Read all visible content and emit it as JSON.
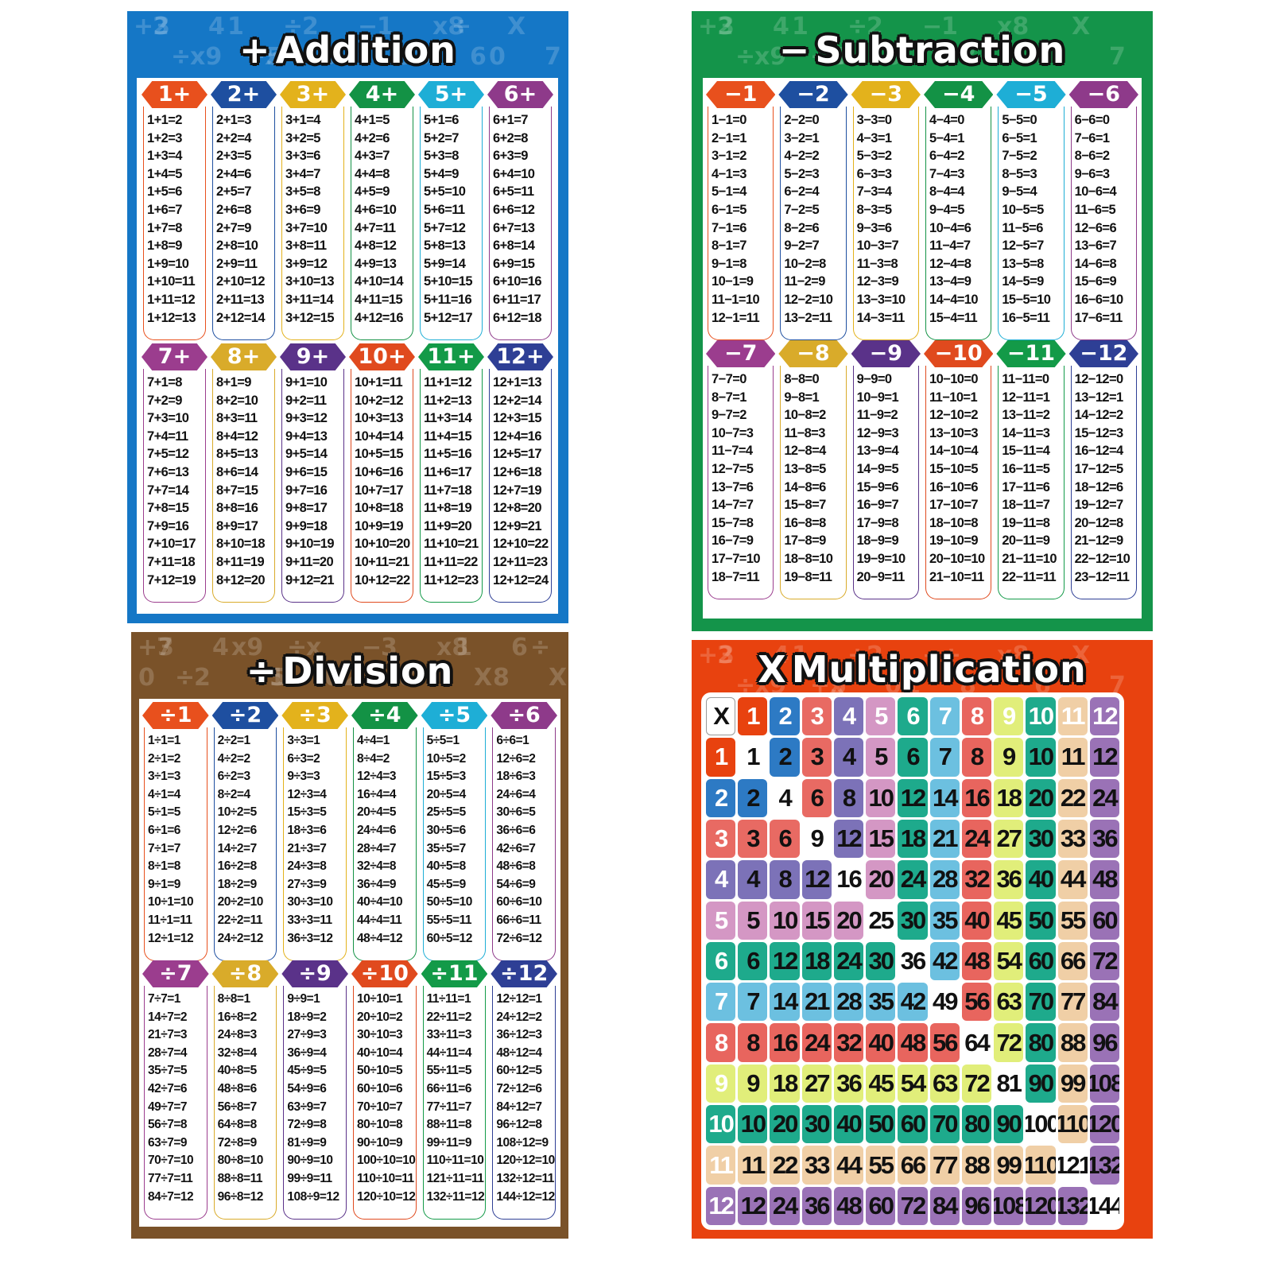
{
  "posters": {
    "addition": {
      "title_symbol": "+",
      "title": "Addition",
      "background": "#1577c6",
      "watermark": [
        "+3",
        "÷",
        "4",
        "+5",
        "÷",
        "0",
        "−",
        "8",
        "x8",
        "6",
        "X",
        "7",
        "2",
        "x9",
        "1",
        "x",
        "2",
        "−",
        "1",
        "8",
        "÷",
        "0"
      ],
      "columns": [
        {
          "label": "1+",
          "color": "#e8501d",
          "equations": [
            "1+1=2",
            "1+2=3",
            "1+3=4",
            "1+4=5",
            "1+5=6",
            "1+6=7",
            "1+7=8",
            "1+8=9",
            "1+9=10",
            "1+10=11",
            "1+11=12",
            "1+12=13"
          ]
        },
        {
          "label": "2+",
          "color": "#1e4fa0",
          "equations": [
            "2+1=3",
            "2+2=4",
            "2+3=5",
            "2+4=6",
            "2+5=7",
            "2+6=8",
            "2+7=9",
            "2+8=10",
            "2+9=11",
            "2+10=12",
            "2+11=13",
            "2+12=14"
          ]
        },
        {
          "label": "3+",
          "color": "#e3b21c",
          "equations": [
            "3+1=4",
            "3+2=5",
            "3+3=6",
            "3+4=7",
            "3+5=8",
            "3+6=9",
            "3+7=10",
            "3+8=11",
            "3+9=12",
            "3+10=13",
            "3+11=14",
            "3+12=15"
          ]
        },
        {
          "label": "4+",
          "color": "#139245",
          "equations": [
            "4+1=5",
            "4+2=6",
            "4+3=7",
            "4+4=8",
            "4+5=9",
            "4+6=10",
            "4+7=11",
            "4+8=12",
            "4+9=13",
            "4+10=14",
            "4+11=15",
            "4+12=16"
          ]
        },
        {
          "label": "5+",
          "color": "#1eaed6",
          "equations": [
            "5+1=6",
            "5+2=7",
            "5+3=8",
            "5+4=9",
            "5+5=10",
            "5+6=11",
            "5+7=12",
            "5+8=13",
            "5+9=14",
            "5+10=15",
            "5+11=16",
            "5+12=17"
          ]
        },
        {
          "label": "6+",
          "color": "#8e3a8a",
          "equations": [
            "6+1=7",
            "6+2=8",
            "6+3=9",
            "6+4=10",
            "6+5=11",
            "6+6=12",
            "6+7=13",
            "6+8=14",
            "6+9=15",
            "6+10=16",
            "6+11=17",
            "6+12=18"
          ]
        },
        {
          "label": "7+",
          "color": "#9b3d8e",
          "equations": [
            "7+1=8",
            "7+2=9",
            "7+3=10",
            "7+4=11",
            "7+5=12",
            "7+6=13",
            "7+7=14",
            "7+8=15",
            "7+9=16",
            "7+10=17",
            "7+11=18",
            "7+12=19"
          ]
        },
        {
          "label": "8+",
          "color": "#d9ab2a",
          "equations": [
            "8+1=9",
            "8+2=10",
            "8+3=11",
            "8+4=12",
            "8+5=13",
            "8+6=14",
            "8+7=15",
            "8+8=16",
            "8+9=17",
            "8+10=18",
            "8+11=19",
            "8+12=20"
          ]
        },
        {
          "label": "9+",
          "color": "#5a3289",
          "equations": [
            "9+1=10",
            "9+2=11",
            "9+3=12",
            "9+4=13",
            "9+5=14",
            "9+6=15",
            "9+7=16",
            "9+8=17",
            "9+9=18",
            "9+10=19",
            "9+11=20",
            "9+12=21"
          ]
        },
        {
          "label": "10+",
          "color": "#e04a1e",
          "equations": [
            "10+1=11",
            "10+2=12",
            "10+3=13",
            "10+4=14",
            "10+5=15",
            "10+6=16",
            "10+7=17",
            "10+8=18",
            "10+9=19",
            "10+10=20",
            "10+11=21",
            "10+12=22"
          ]
        },
        {
          "label": "11+",
          "color": "#139a48",
          "equations": [
            "11+1=12",
            "11+2=13",
            "11+3=14",
            "11+4=15",
            "11+5=16",
            "11+6=17",
            "11+7=18",
            "11+8=19",
            "11+9=20",
            "11+10=21",
            "11+11=22",
            "11+12=23"
          ]
        },
        {
          "label": "12+",
          "color": "#2e3f95",
          "equations": [
            "12+1=13",
            "12+2=14",
            "12+3=15",
            "12+4=16",
            "12+5=17",
            "12+6=18",
            "12+7=19",
            "12+8=20",
            "12+9=21",
            "12+10=22",
            "12+11=23",
            "12+12=24"
          ]
        }
      ]
    },
    "subtraction": {
      "title_symbol": "−",
      "title": "Subtraction",
      "background": "#14944a",
      "watermark": [
        "+3",
        "÷",
        "4",
        "+5",
        "÷",
        "0",
        "−",
        "8",
        "x8",
        "6",
        "X",
        "7",
        "2",
        "x9",
        "1",
        "x",
        "2",
        "−",
        "1",
        "÷"
      ],
      "columns": [
        {
          "label": "−1",
          "color": "#e8501d",
          "equations": [
            "1−1=0",
            "2−1=1",
            "3−1=2",
            "4−1=3",
            "5−1=4",
            "6−1=5",
            "7−1=6",
            "8−1=7",
            "9−1=8",
            "10−1=9",
            "11−1=10",
            "12−1=11"
          ]
        },
        {
          "label": "−2",
          "color": "#1e4fa0",
          "equations": [
            "2−2=0",
            "3−2=1",
            "4−2=2",
            "5−2=3",
            "6−2=4",
            "7−2=5",
            "8−2=6",
            "9−2=7",
            "10−2=8",
            "11−2=9",
            "12−2=10",
            "13−2=11"
          ]
        },
        {
          "label": "−3",
          "color": "#e3b21c",
          "equations": [
            "3−3=0",
            "4−3=1",
            "5−3=2",
            "6−3=3",
            "7−3=4",
            "8−3=5",
            "9−3=6",
            "10−3=7",
            "11−3=8",
            "12−3=9",
            "13−3=10",
            "14−3=11"
          ]
        },
        {
          "label": "−4",
          "color": "#139245",
          "equations": [
            "4−4=0",
            "5−4=1",
            "6−4=2",
            "7−4=3",
            "8−4=4",
            "9−4=5",
            "10−4=6",
            "11−4=7",
            "12−4=8",
            "13−4=9",
            "14−4=10",
            "15−4=11"
          ]
        },
        {
          "label": "−5",
          "color": "#1eaed6",
          "equations": [
            "5−5=0",
            "6−5=1",
            "7−5=2",
            "8−5=3",
            "9−5=4",
            "10−5=5",
            "11−5=6",
            "12−5=7",
            "13−5=8",
            "14−5=9",
            "15−5=10",
            "16−5=11"
          ]
        },
        {
          "label": "−6",
          "color": "#8e3a8a",
          "equations": [
            "6−6=0",
            "7−6=1",
            "8−6=2",
            "9−6=3",
            "10−6=4",
            "11−6=5",
            "12−6=6",
            "13−6=7",
            "14−6=8",
            "15−6=9",
            "16−6=10",
            "17−6=11"
          ]
        },
        {
          "label": "−7",
          "color": "#9b3d8e",
          "equations": [
            "7−7=0",
            "8−7=1",
            "9−7=2",
            "10−7=3",
            "11−7=4",
            "12−7=5",
            "13−7=6",
            "14−7=7",
            "15−7=8",
            "16−7=9",
            "17−7=10",
            "18−7=11"
          ]
        },
        {
          "label": "−8",
          "color": "#d9ab2a",
          "equations": [
            "8−8=0",
            "9−8=1",
            "10−8=2",
            "11−8=3",
            "12−8=4",
            "13−8=5",
            "14−8=6",
            "15−8=7",
            "16−8=8",
            "17−8=9",
            "18−8=10",
            "19−8=11"
          ]
        },
        {
          "label": "−9",
          "color": "#5a3289",
          "equations": [
            "9−9=0",
            "10−9=1",
            "11−9=2",
            "12−9=3",
            "13−9=4",
            "14−9=5",
            "15−9=6",
            "16−9=7",
            "17−9=8",
            "18−9=9",
            "19−9=10",
            "20−9=11"
          ]
        },
        {
          "label": "−10",
          "color": "#e04a1e",
          "equations": [
            "10−10=0",
            "11−10=1",
            "12−10=2",
            "13−10=3",
            "14−10=4",
            "15−10=5",
            "16−10=6",
            "17−10=7",
            "18−10=8",
            "19−10=9",
            "20−10=10",
            "21−10=11"
          ]
        },
        {
          "label": "−11",
          "color": "#139a48",
          "equations": [
            "11−11=0",
            "12−11=1",
            "13−11=2",
            "14−11=3",
            "15−11=4",
            "16−11=5",
            "17−11=6",
            "18−11=7",
            "19−11=8",
            "20−11=9",
            "21−11=10",
            "22−11=11"
          ]
        },
        {
          "label": "−12",
          "color": "#2e3f95",
          "equations": [
            "12−12=0",
            "13−12=1",
            "14−12=2",
            "15−12=3",
            "16−12=4",
            "17−12=5",
            "18−12=6",
            "19−12=7",
            "20−12=8",
            "21−12=9",
            "22−12=10",
            "23−12=11"
          ]
        }
      ]
    },
    "division": {
      "title_symbol": "÷",
      "title": "Division",
      "background": "#7a5229",
      "watermark": [
        "+3",
        "÷",
        "4",
        "+5",
        "÷",
        "0",
        "−",
        "8",
        "x8",
        "X",
        "6",
        "X",
        "7",
        "2",
        "x9",
        "1",
        "x",
        "2",
        "3",
        "+",
        "1",
        "8",
        "÷",
        "0"
      ],
      "columns": [
        {
          "label": "÷1",
          "color": "#e8501d",
          "equations": [
            "1÷1=1",
            "2÷1=2",
            "3÷1=3",
            "4÷1=4",
            "5÷1=5",
            "6÷1=6",
            "7÷1=7",
            "8÷1=8",
            "9÷1=9",
            "10÷1=10",
            "11÷1=11",
            "12÷1=12"
          ]
        },
        {
          "label": "÷2",
          "color": "#1e4fa0",
          "equations": [
            "2÷2=1",
            "4÷2=2",
            "6÷2=3",
            "8÷2=4",
            "10÷2=5",
            "12÷2=6",
            "14÷2=7",
            "16÷2=8",
            "18÷2=9",
            "20÷2=10",
            "22÷2=11",
            "24÷2=12"
          ]
        },
        {
          "label": "÷3",
          "color": "#e3b21c",
          "equations": [
            "3÷3=1",
            "6÷3=2",
            "9÷3=3",
            "12÷3=4",
            "15÷3=5",
            "18÷3=6",
            "21÷3=7",
            "24÷3=8",
            "27÷3=9",
            "30÷3=10",
            "33÷3=11",
            "36÷3=12"
          ]
        },
        {
          "label": "÷4",
          "color": "#139245",
          "equations": [
            "4÷4=1",
            "8÷4=2",
            "12÷4=3",
            "16÷4=4",
            "20÷4=5",
            "24÷4=6",
            "28÷4=7",
            "32÷4=8",
            "36÷4=9",
            "40÷4=10",
            "44÷4=11",
            "48÷4=12"
          ]
        },
        {
          "label": "÷5",
          "color": "#1eaed6",
          "equations": [
            "5÷5=1",
            "10÷5=2",
            "15÷5=3",
            "20÷5=4",
            "25÷5=5",
            "30÷5=6",
            "35÷5=7",
            "40÷5=8",
            "45÷5=9",
            "50÷5=10",
            "55÷5=11",
            "60÷5=12"
          ]
        },
        {
          "label": "÷6",
          "color": "#8e3a8a",
          "equations": [
            "6÷6=1",
            "12÷6=2",
            "18÷6=3",
            "24÷6=4",
            "30÷6=5",
            "36÷6=6",
            "42÷6=7",
            "48÷6=8",
            "54÷6=9",
            "60÷6=10",
            "66÷6=11",
            "72÷6=12"
          ]
        },
        {
          "label": "÷7",
          "color": "#9b3d8e",
          "equations": [
            "7÷7=1",
            "14÷7=2",
            "21÷7=3",
            "28÷7=4",
            "35÷7=5",
            "42÷7=6",
            "49÷7=7",
            "56÷7=8",
            "63÷7=9",
            "70÷7=10",
            "77÷7=11",
            "84÷7=12"
          ]
        },
        {
          "label": "÷8",
          "color": "#d9ab2a",
          "equations": [
            "8÷8=1",
            "16÷8=2",
            "24÷8=3",
            "32÷8=4",
            "40÷8=5",
            "48÷8=6",
            "56÷8=7",
            "64÷8=8",
            "72÷8=9",
            "80÷8=10",
            "88÷8=11",
            "96÷8=12"
          ]
        },
        {
          "label": "÷9",
          "color": "#5a3289",
          "equations": [
            "9÷9=1",
            "18÷9=2",
            "27÷9=3",
            "36÷9=4",
            "45÷9=5",
            "54÷9=6",
            "63÷9=7",
            "72÷9=8",
            "81÷9=9",
            "90÷9=10",
            "99÷9=11",
            "108÷9=12"
          ]
        },
        {
          "label": "÷10",
          "color": "#e04a1e",
          "equations": [
            "10÷10=1",
            "20÷10=2",
            "30÷10=3",
            "40÷10=4",
            "50÷10=5",
            "60÷10=6",
            "70÷10=7",
            "80÷10=8",
            "90÷10=9",
            "100÷10=10",
            "110÷10=11",
            "120÷10=12"
          ]
        },
        {
          "label": "÷11",
          "color": "#139a48",
          "equations": [
            "11÷11=1",
            "22÷11=2",
            "33÷11=3",
            "44÷11=4",
            "55÷11=5",
            "66÷11=6",
            "77÷11=7",
            "88÷11=8",
            "99÷11=9",
            "110÷11=10",
            "121÷11=11",
            "132÷11=12"
          ]
        },
        {
          "label": "÷12",
          "color": "#2e3f95",
          "equations": [
            "12÷12=1",
            "24÷12=2",
            "36÷12=3",
            "48÷12=4",
            "60÷12=5",
            "72÷12=6",
            "84÷12=7",
            "96÷12=8",
            "108÷12=9",
            "120÷12=10",
            "132÷12=11",
            "144÷12=12"
          ]
        }
      ]
    },
    "multiplication": {
      "title_symbol": "X",
      "title": "Multiplication",
      "background": "#e8420f",
      "watermark": [
        "+3",
        "÷",
        "4",
        "+5",
        "÷",
        "0",
        "−",
        "8",
        "x8",
        "6",
        "X",
        "7",
        "2",
        "x9",
        "1",
        "x",
        "2",
        "1",
        "÷"
      ],
      "corner_label": "X",
      "factors": [
        1,
        2,
        3,
        4,
        5,
        6,
        7,
        8,
        9,
        10,
        11,
        12
      ],
      "factor_colors": [
        "#e8420f",
        "#2d7ac4",
        "#e86a63",
        "#7c72b8",
        "#d497c4",
        "#1eaa8c",
        "#6cc0e0",
        "#e8655e",
        "#e1ee7a",
        "#1eaa8c",
        "#f0cfa6",
        "#9a72b6"
      ],
      "table": [
        [
          1,
          2,
          3,
          4,
          5,
          6,
          7,
          8,
          9,
          10,
          11,
          12
        ],
        [
          2,
          4,
          6,
          8,
          10,
          12,
          14,
          16,
          18,
          20,
          22,
          24
        ],
        [
          3,
          6,
          9,
          12,
          15,
          18,
          21,
          24,
          27,
          30,
          33,
          36
        ],
        [
          4,
          8,
          12,
          16,
          20,
          24,
          28,
          32,
          36,
          40,
          44,
          48
        ],
        [
          5,
          10,
          15,
          20,
          25,
          30,
          35,
          40,
          45,
          50,
          55,
          60
        ],
        [
          6,
          12,
          18,
          24,
          30,
          36,
          42,
          48,
          54,
          60,
          66,
          72
        ],
        [
          7,
          14,
          21,
          28,
          35,
          42,
          49,
          56,
          63,
          70,
          77,
          84
        ],
        [
          8,
          16,
          24,
          32,
          40,
          48,
          56,
          64,
          72,
          80,
          88,
          96
        ],
        [
          9,
          18,
          27,
          36,
          45,
          54,
          63,
          72,
          81,
          90,
          99,
          108
        ],
        [
          10,
          20,
          30,
          40,
          50,
          60,
          70,
          80,
          90,
          100,
          110,
          120
        ],
        [
          11,
          22,
          33,
          44,
          55,
          66,
          77,
          88,
          99,
          110,
          121,
          132
        ],
        [
          12,
          24,
          36,
          48,
          60,
          72,
          84,
          96,
          108,
          120,
          132,
          144
        ]
      ]
    }
  }
}
